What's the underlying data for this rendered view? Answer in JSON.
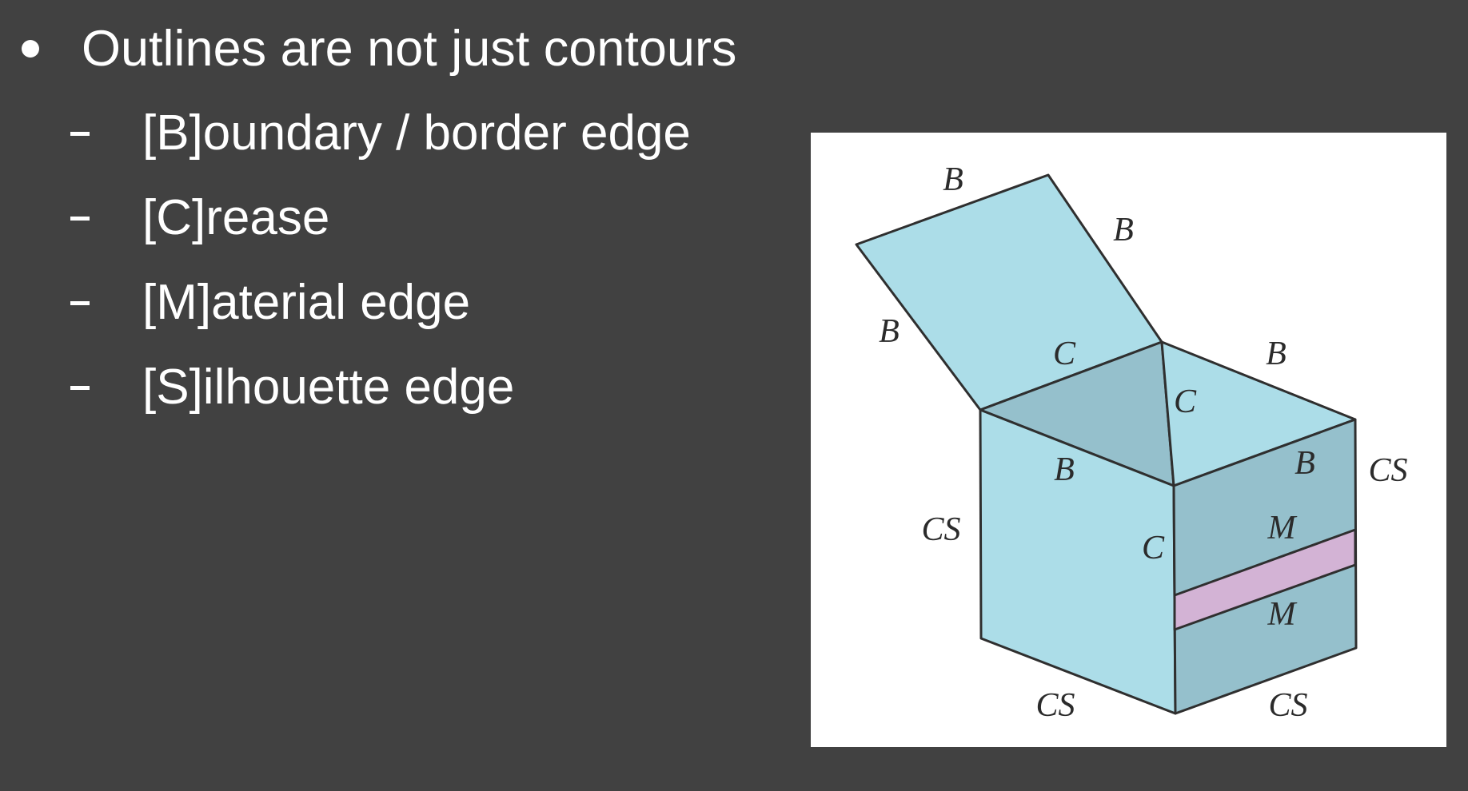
{
  "bullet": {
    "text": "Outlines are not just contours"
  },
  "sub_items": [
    {
      "text": "[B]oundary / border edge"
    },
    {
      "text": "[C]rease"
    },
    {
      "text": "[M]aterial edge"
    },
    {
      "text": "[S]ilhouette edge"
    }
  ],
  "figure": {
    "colors": {
      "face_light": "#acdde8",
      "face_shaded": "#95c0cc",
      "material_band": "#d3b3d5",
      "outline": "#2f2f2f"
    },
    "labels": {
      "lid_top": "B",
      "lid_right": "B",
      "lid_left": "B",
      "lid_hinge": "C",
      "inner_corner": "C",
      "back_right_rim": "B",
      "front_left_rim": "B",
      "front_right_rim": "B",
      "left_silhouette": "CS",
      "right_silhouette": "CS",
      "front_corner": "C",
      "band_top": "M",
      "band_bottom": "M",
      "bottom_left": "CS",
      "bottom_right": "CS"
    }
  }
}
